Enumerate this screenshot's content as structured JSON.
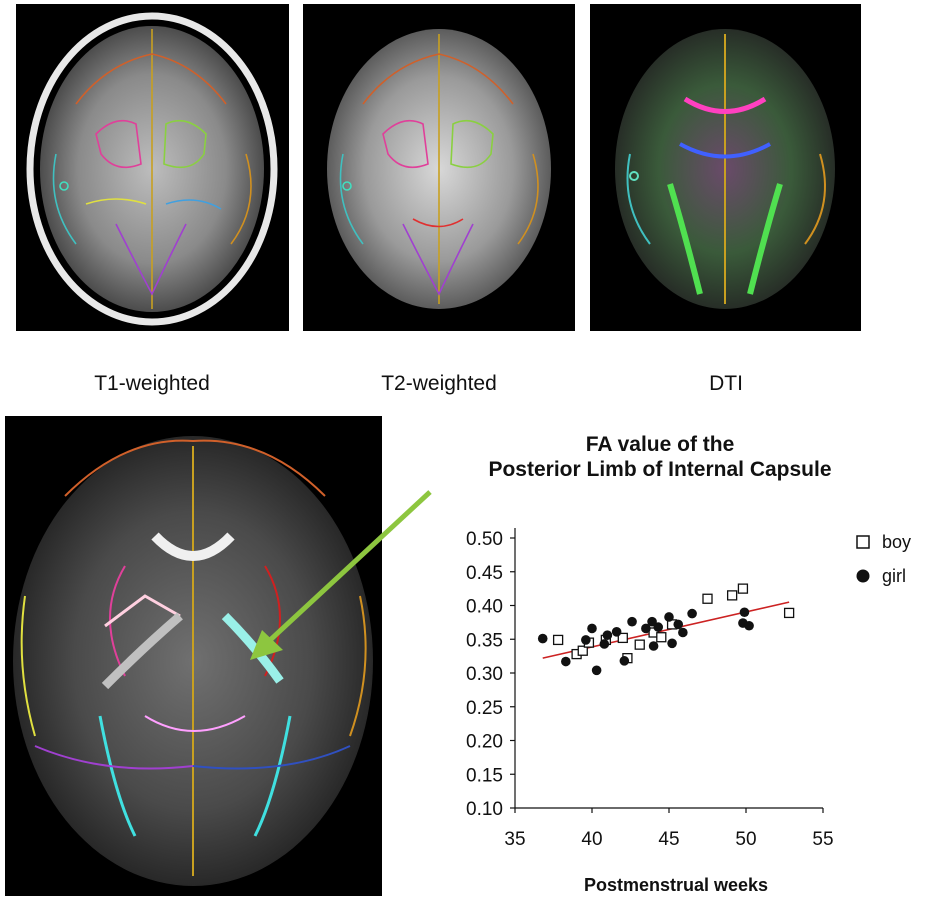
{
  "figure": {
    "panels": [
      {
        "caption": "T1-weighted",
        "icon": "t1-weighted-brain-mri-icon"
      },
      {
        "caption": "T2-weighted",
        "icon": "t2-weighted-brain-mri-icon"
      },
      {
        "caption": "DTI",
        "icon": "dti-color-map-icon"
      }
    ],
    "large_panel_icon": "fa-map-with-atlas-overlay-icon",
    "arrow_color": "#8dc63f"
  },
  "chart_data": {
    "type": "scatter",
    "title_lines": [
      "FA value of the",
      "Posterior Limb of Internal Capsule"
    ],
    "xlabel": "Postmenstrual  weeks",
    "ylabel": "",
    "xlim": [
      35,
      55
    ],
    "ylim": [
      0.1,
      0.5
    ],
    "x_ticks": [
      "35",
      "40",
      "45",
      "50",
      "55"
    ],
    "y_ticks": [
      "0.50",
      "0.45",
      "0.40",
      "0.35",
      "0.30",
      "0.25",
      "0.20",
      "0.15",
      "0.10"
    ],
    "legend": [
      {
        "label": "boy",
        "marker": "open-square"
      },
      {
        "label": "girl",
        "marker": "filled-circle"
      }
    ],
    "trendline": {
      "x": [
        36.8,
        52.8
      ],
      "y": [
        0.322,
        0.405
      ],
      "color": "#cc2222"
    },
    "series": [
      {
        "name": "boy",
        "points": [
          [
            37.8,
            0.349
          ],
          [
            39.0,
            0.328
          ],
          [
            39.4,
            0.333
          ],
          [
            39.8,
            0.345
          ],
          [
            40.9,
            0.349
          ],
          [
            42.0,
            0.352
          ],
          [
            42.3,
            0.322
          ],
          [
            43.1,
            0.342
          ],
          [
            44.0,
            0.36
          ],
          [
            44.5,
            0.353
          ],
          [
            47.5,
            0.41
          ],
          [
            49.1,
            0.415
          ],
          [
            49.8,
            0.425
          ],
          [
            52.8,
            0.389
          ],
          [
            45.2,
            0.372
          ]
        ]
      },
      {
        "name": "girl",
        "points": [
          [
            36.8,
            0.351
          ],
          [
            38.3,
            0.317
          ],
          [
            39.6,
            0.349
          ],
          [
            40.0,
            0.366
          ],
          [
            40.3,
            0.304
          ],
          [
            40.8,
            0.343
          ],
          [
            41.0,
            0.356
          ],
          [
            41.6,
            0.361
          ],
          [
            42.1,
            0.318
          ],
          [
            42.6,
            0.376
          ],
          [
            43.5,
            0.366
          ],
          [
            43.9,
            0.376
          ],
          [
            44.0,
            0.34
          ],
          [
            44.3,
            0.368
          ],
          [
            45.0,
            0.383
          ],
          [
            45.2,
            0.344
          ],
          [
            45.6,
            0.372
          ],
          [
            45.9,
            0.36
          ],
          [
            46.5,
            0.388
          ],
          [
            49.8,
            0.374
          ],
          [
            49.9,
            0.39
          ],
          [
            50.2,
            0.37
          ]
        ]
      }
    ]
  }
}
